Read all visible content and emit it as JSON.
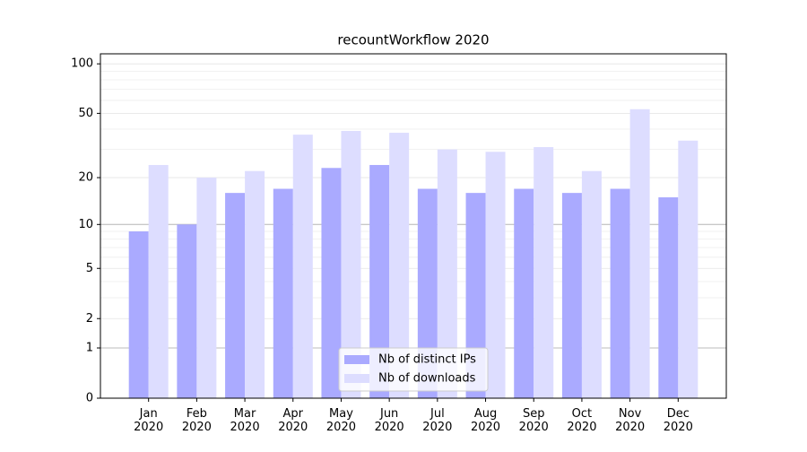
{
  "chart_data": {
    "type": "bar",
    "title": "recountWorkflow 2020",
    "categories": [
      "Jan\n2020",
      "Feb\n2020",
      "Mar\n2020",
      "Apr\n2020",
      "May\n2020",
      "Jun\n2020",
      "Jul\n2020",
      "Aug\n2020",
      "Sep\n2020",
      "Oct\n2020",
      "Nov\n2020",
      "Dec\n2020"
    ],
    "series": [
      {
        "name": "Nb of distinct IPs",
        "color": "#aaaaff",
        "values": [
          9,
          10,
          16,
          17,
          23,
          24,
          17,
          16,
          17,
          16,
          17,
          15
        ]
      },
      {
        "name": "Nb of downloads",
        "color": "#ddddff",
        "values": [
          24,
          20,
          22,
          37,
          39,
          38,
          30,
          29,
          31,
          22,
          53,
          34
        ]
      }
    ],
    "scale": "log1p",
    "ylim": [
      0,
      115
    ],
    "yticks": [
      0,
      1,
      2,
      5,
      10,
      20,
      50,
      100
    ],
    "major_grid": [
      1,
      10
    ],
    "minor_grid": [
      3,
      4,
      6,
      7,
      8,
      9,
      30,
      40,
      60,
      70,
      80,
      90
    ],
    "grid": true,
    "legend": "lower center"
  }
}
